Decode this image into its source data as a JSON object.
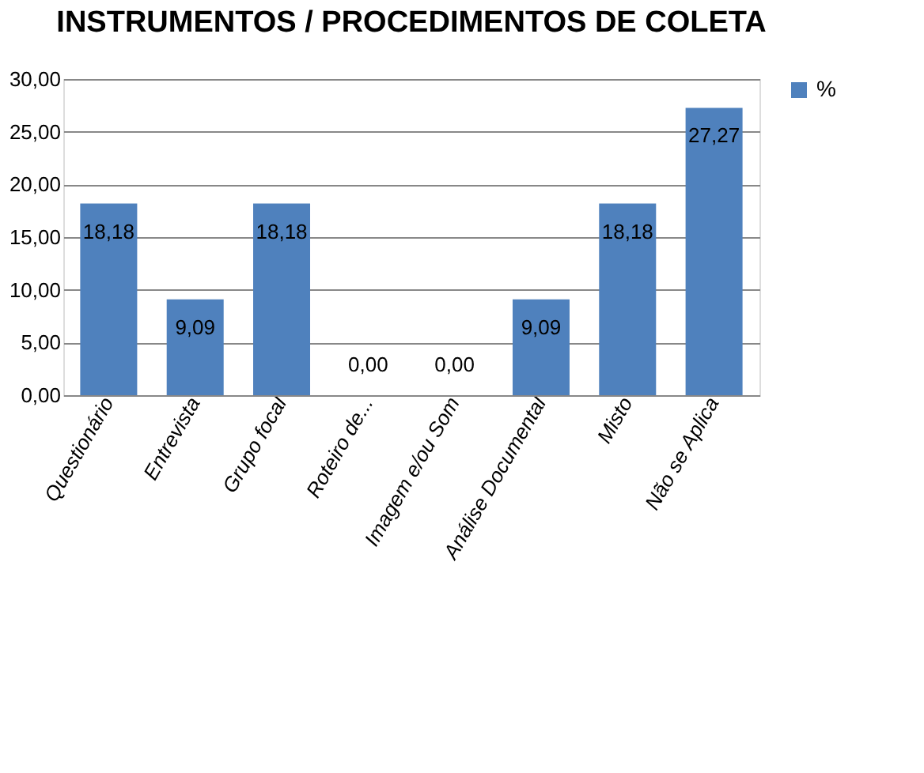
{
  "chart_data": {
    "type": "bar",
    "title": "INSTRUMENTOS / PROCEDIMENTOS DE COLETA",
    "categories": [
      "Questionário",
      "Entrevista",
      "Grupo focal",
      "Roteiro de...",
      "Imagem e/ou Som",
      "Análise Documental",
      "Misto",
      "Não se Aplica"
    ],
    "series": [
      {
        "name": "%",
        "color": "#4f81bd",
        "values": [
          18.18,
          9.09,
          18.18,
          0,
          0,
          9.09,
          18.18,
          27.27
        ]
      }
    ],
    "value_labels": [
      "18,18",
      "9,09",
      "18,18",
      "0,00",
      "0,00",
      "9,09",
      "18,18",
      "27,27"
    ],
    "ylim": [
      0,
      30
    ],
    "yticks": [
      {
        "value": 0,
        "label": "0,00"
      },
      {
        "value": 5,
        "label": "5,00"
      },
      {
        "value": 10,
        "label": "10,00"
      },
      {
        "value": 15,
        "label": "15,00"
      },
      {
        "value": 20,
        "label": "20,00"
      },
      {
        "value": 25,
        "label": "25,00"
      },
      {
        "value": 30,
        "label": "30,00"
      }
    ],
    "grid": "y",
    "legend": "right"
  }
}
